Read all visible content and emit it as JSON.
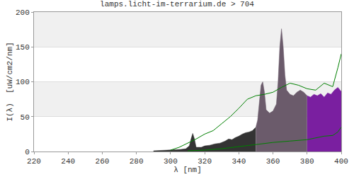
{
  "chart_data": {
    "type": "area",
    "title": "lamps.licht-im-terrarium.de > 704",
    "x_label": "λ [nm]",
    "y_label": "I(λ)  [uW/cm2/nm]",
    "xlim": [
      220,
      400
    ],
    "xticks": [
      220,
      240,
      260,
      280,
      300,
      320,
      340,
      360,
      380,
      400
    ],
    "ylim": [
      0,
      200
    ],
    "yticks": [
      0,
      50,
      100,
      150,
      200
    ],
    "grid": true,
    "series": [
      {
        "type": "area",
        "color": "#333333",
        "x": [
          290,
          295,
          300,
          303,
          306,
          309,
          311,
          312,
          313,
          314,
          315,
          318,
          320,
          323,
          326,
          329,
          332,
          334,
          336,
          338,
          340,
          342,
          344,
          346,
          348,
          350
        ],
        "values": [
          1,
          1.5,
          2,
          3,
          3,
          4,
          8,
          18,
          26,
          18,
          6,
          6,
          8,
          9,
          11,
          12,
          15,
          18,
          17,
          20,
          22,
          25,
          27,
          28,
          30,
          35
        ]
      },
      {
        "type": "area",
        "color": "#6b5b6b",
        "x": [
          350,
          351,
          352,
          353,
          354,
          355,
          356,
          358,
          360,
          362,
          363,
          364,
          365,
          366,
          367,
          368,
          370,
          372,
          374,
          376,
          378,
          380
        ],
        "values": [
          35,
          45,
          70,
          95,
          100,
          85,
          60,
          55,
          58,
          68,
          100,
          150,
          176,
          150,
          110,
          88,
          82,
          80,
          85,
          88,
          85,
          80
        ]
      },
      {
        "type": "area",
        "color": "#7a1fa0",
        "x": [
          380,
          382,
          384,
          386,
          388,
          390,
          392,
          394,
          396,
          398,
          400
        ],
        "values": [
          80,
          78,
          82,
          80,
          83,
          78,
          84,
          82,
          88,
          92,
          86
        ]
      },
      {
        "type": "line",
        "color": "#008000",
        "x": [
          300,
          305,
          310,
          315,
          320,
          325,
          330,
          335,
          340,
          343,
          345,
          350,
          355,
          360,
          365,
          370,
          375,
          380,
          385,
          390,
          395,
          398,
          400
        ],
        "values": [
          2,
          6,
          12,
          18,
          25,
          30,
          40,
          50,
          62,
          70,
          75,
          80,
          82,
          85,
          92,
          98,
          95,
          90,
          88,
          98,
          93,
          120,
          140
        ]
      },
      {
        "type": "line",
        "color": "#008000",
        "x": [
          310,
          320,
          330,
          340,
          350,
          360,
          370,
          380,
          390,
          395,
          398,
          400
        ],
        "values": [
          1,
          2,
          4,
          7,
          10,
          13,
          15,
          17,
          22,
          23,
          28,
          35
        ]
      }
    ]
  }
}
